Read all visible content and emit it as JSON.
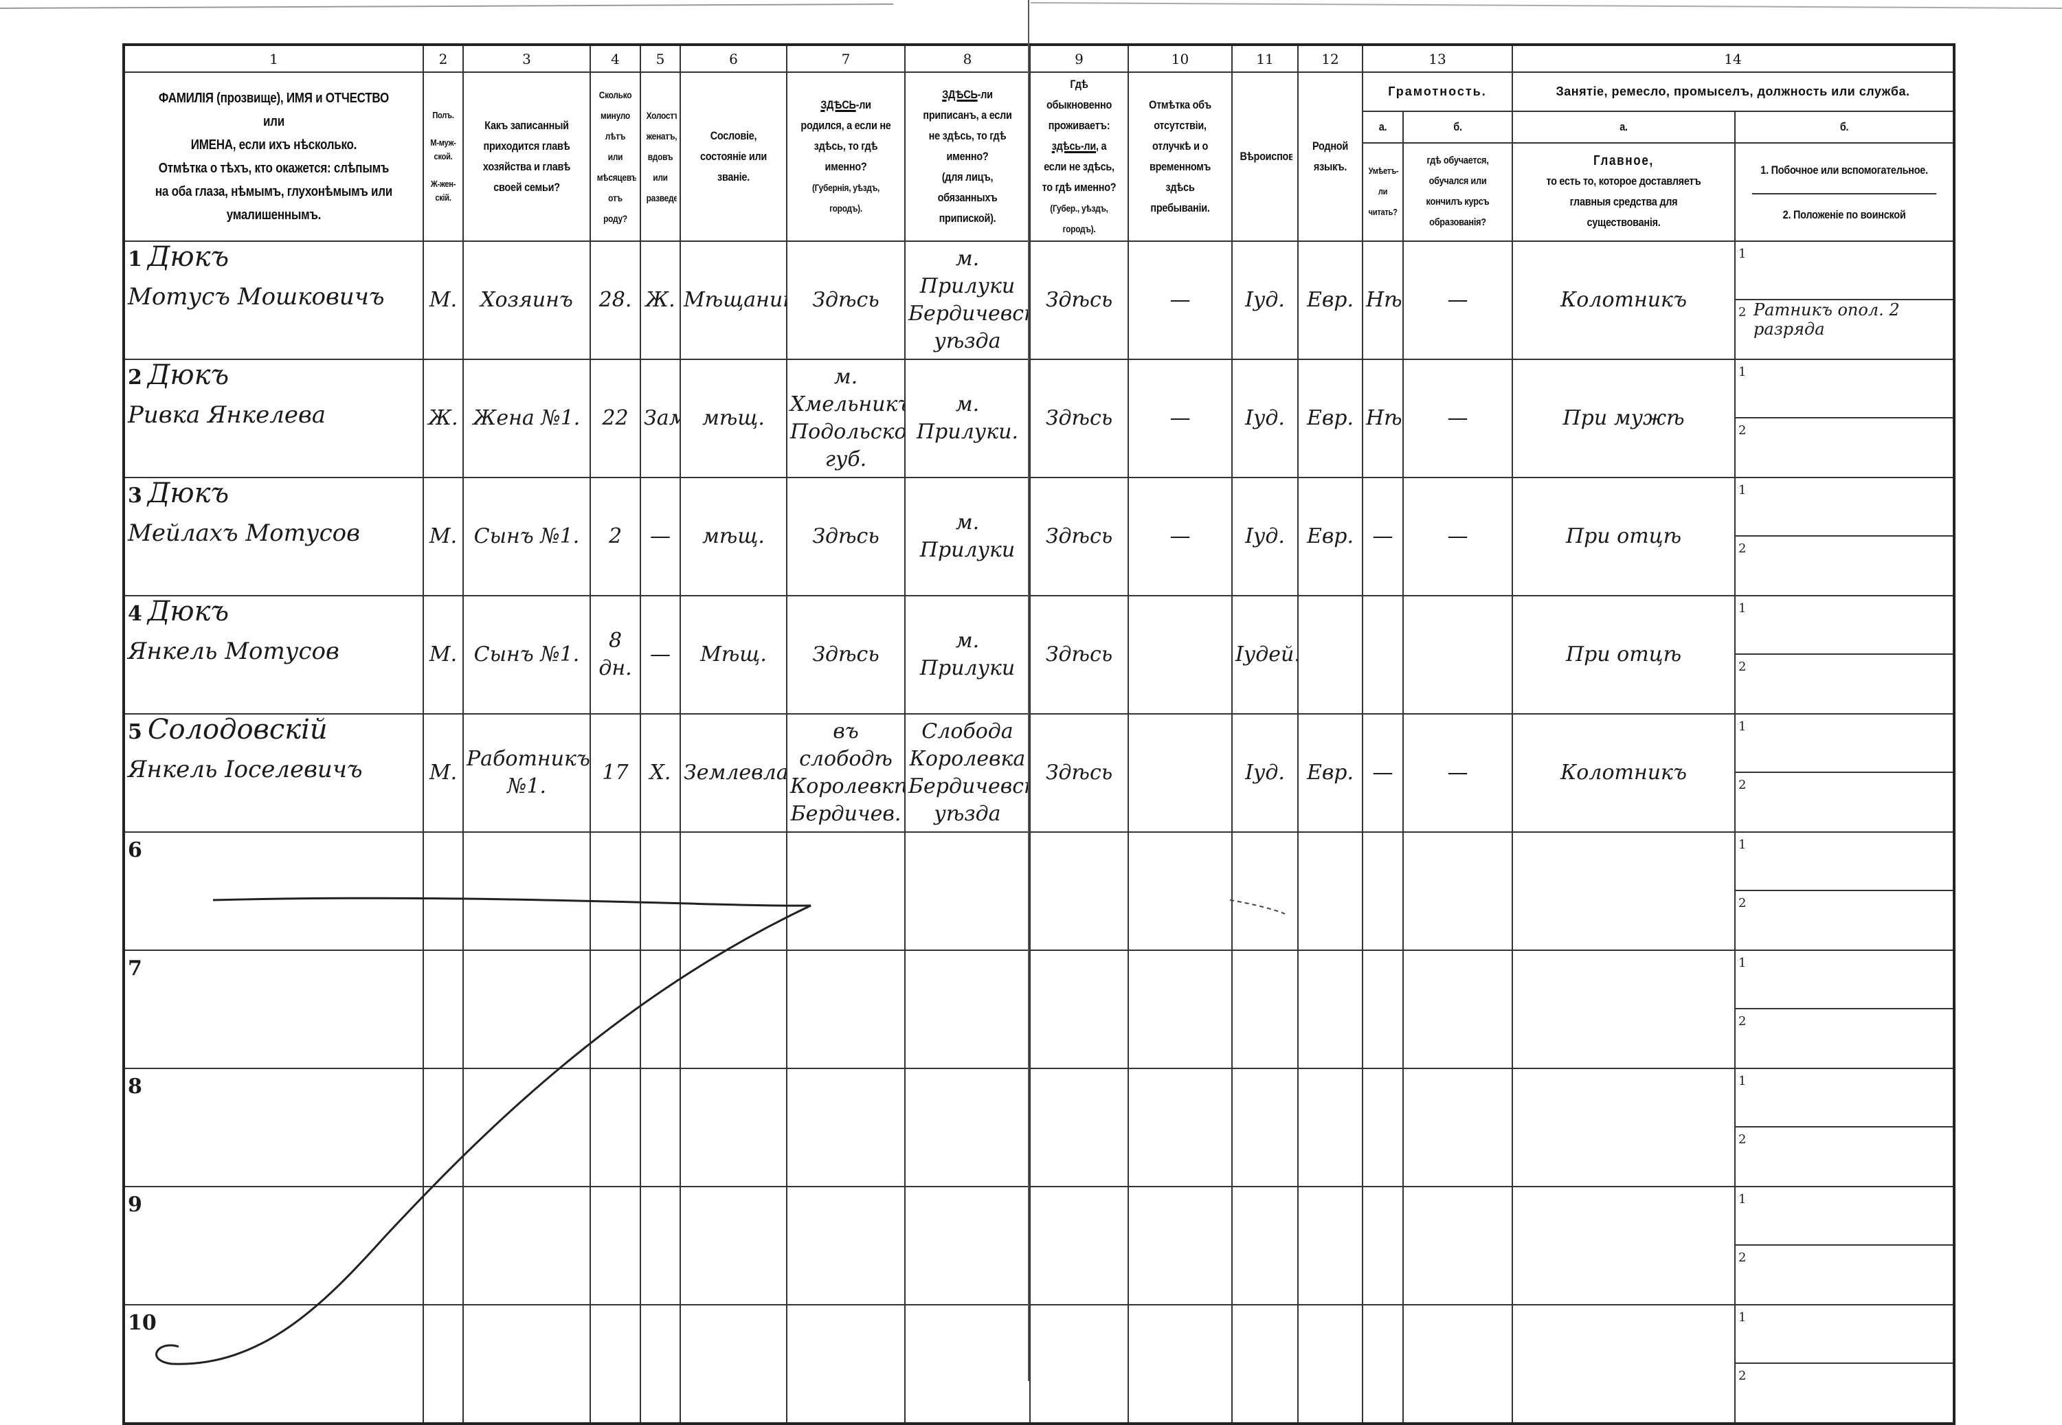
{
  "column_numbers": [
    "1",
    "2",
    "3",
    "4",
    "5",
    "6",
    "7",
    "8",
    "9",
    "10",
    "11",
    "12",
    "13",
    "14"
  ],
  "headers": {
    "c1": [
      "ФАМИЛІЯ (прозвище), ИМЯ и ОТЧЕСТВО или",
      "ИМЕНА, если ихъ нѣсколько.",
      "Отмѣтка о тѣхъ, кто окажется: слѣпымъ",
      "на оба глаза, нѣмымъ, глухонѣмымъ или",
      "умалишеннымъ."
    ],
    "c2": [
      "Полъ.",
      "М-муж-ской.",
      "Ж-жен-скій."
    ],
    "c3": "Какъ записанный приходится главѣ хозяйства и главѣ своей семьи?",
    "c4": "Сколько минуло лѣтъ или мѣсяцевъ отъ роду?",
    "c5": "Холостъ, женатъ, вдовъ или разведенъ.",
    "c6": "Сословіе, состояніе или званіе.",
    "c7": {
      "u": "ЗДѢСЬ",
      "t": "-ли родился, а если не здѣсь, то гдѣ именно?",
      "n": "(Губернія, уѣздъ, городъ)."
    },
    "c8": {
      "u": "ЗДѢСЬ",
      "t": "-ли приписанъ, а если не здѣсь, то гдѣ именно?",
      "n": "(для лицъ, обязанныхъ припиской)."
    },
    "c9": {
      "p": "Гдѣ обыкновенно проживаетъ:",
      "u": "здѣсь-ли",
      "t": ", а если не здѣсь, то гдѣ именно?",
      "n": "(Губер., уѣздъ, городъ)."
    },
    "c10": "Отмѣтка объ отсутствіи, отлучкѣ и о временномъ здѣсь пребываніи.",
    "c11": "Вѣроисповѣданіе.",
    "c12": "Родной языкъ.",
    "c13": {
      "title": "Грамотность.",
      "a": "а.",
      "b": "б.",
      "a_text": "Умѣетъ-ли читать?",
      "b_text": "гдѣ обучается, обучался или кончилъ курсъ образованія?"
    },
    "c14": {
      "title": "Занятіе, ремесло, промыселъ, должность или служба.",
      "a": "а.",
      "b": "б.",
      "a_text": [
        "Главное,",
        "то есть то, которое доставляетъ главныя средства для существованія."
      ],
      "b1": "1. Побочное или вспомогательное.",
      "b2": "2. Положеніе по воинской повинности."
    }
  },
  "sub_labels": [
    "1",
    "2"
  ],
  "rows": [
    {
      "n": "1",
      "surname": "Дюкъ",
      "given": "Мотусъ Мошковичъ",
      "sex": "М.",
      "relation": "Хозяинъ",
      "age": "28.",
      "marital": "Ж.",
      "estate": "Мѣщанинъ",
      "born": "Здѣсь",
      "registered": "м. Прилуки Бердичевскаго уѣзда",
      "resides": "Здѣсь",
      "absence": "—",
      "religion": "Іуд.",
      "language": "Евр.",
      "read": "Нѣтъ",
      "school": "—",
      "occupation": "Колотникъ",
      "secondary": "",
      "military": "Ратникъ опол. 2 разряда"
    },
    {
      "n": "2",
      "surname": "Дюкъ",
      "given": "Ривка Янкелева",
      "sex": "Ж.",
      "relation": "Жена №1.",
      "age": "22",
      "marital": "Замуж.",
      "estate": "мѣщ.",
      "born": "м. Хмельникъ Подольской губ.",
      "registered": "м. Прилуки.",
      "resides": "Здѣсь",
      "absence": "—",
      "religion": "Іуд.",
      "language": "Евр.",
      "read": "Нѣтъ",
      "school": "—",
      "occupation": "При мужѣ",
      "secondary": "",
      "military": ""
    },
    {
      "n": "3",
      "surname": "Дюкъ",
      "given": "Мейлахъ Мотусов",
      "sex": "М.",
      "relation": "Сынъ №1.",
      "age": "2",
      "marital": "—",
      "estate": "мѣщ.",
      "born": "Здѣсь",
      "registered": "м. Прилуки",
      "resides": "Здѣсь",
      "absence": "—",
      "religion": "Іуд.",
      "language": "Евр.",
      "read": "—",
      "school": "—",
      "occupation": "При отцѣ",
      "secondary": "",
      "military": ""
    },
    {
      "n": "4",
      "surname": "Дюкъ",
      "given": "Янкель Мотусов",
      "sex": "М.",
      "relation": "Сынъ №1.",
      "age": "8 дн.",
      "marital": "—",
      "estate": "Мѣщ.",
      "born": "Здѣсь",
      "registered": "м. Прилуки",
      "resides": "Здѣсь",
      "absence": "",
      "religion": "Іудей.",
      "language": "",
      "read": "",
      "school": "",
      "occupation": "При отцѣ",
      "secondary": "",
      "military": ""
    },
    {
      "n": "5",
      "surname": "Солодовскій",
      "given": "Янкель Іоселевичъ",
      "sex": "М.",
      "relation": "Работникъ №1.",
      "age": "17",
      "marital": "Х.",
      "estate": "Землевладѣлецъ",
      "born": "въ слободѣ Королевкѣ Бердичев.",
      "registered": "Слобода Королевка Бердичевскаго уѣзда",
      "resides": "Здѣсь",
      "absence": "",
      "religion": "Іуд.",
      "language": "Евр.",
      "read": "—",
      "school": "—",
      "occupation": "Колотникъ",
      "secondary": "",
      "military": ""
    },
    {
      "n": "6"
    },
    {
      "n": "7"
    },
    {
      "n": "8"
    },
    {
      "n": "9"
    },
    {
      "n": "10"
    }
  ]
}
